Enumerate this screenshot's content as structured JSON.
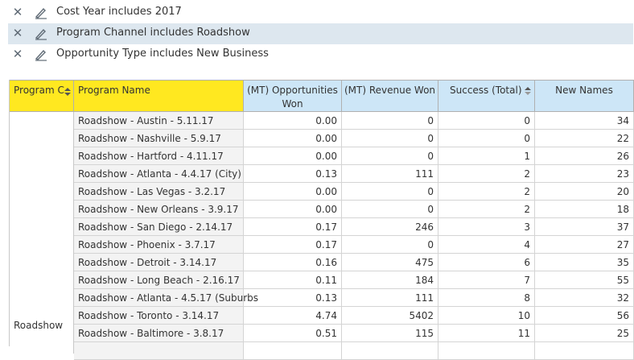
{
  "filters": [
    {
      "text": "Cost Year includes 2017",
      "selected": false
    },
    {
      "text": "Program Channel includes Roadshow",
      "selected": true
    },
    {
      "text": "Opportunity Type includes New Business",
      "selected": false
    }
  ],
  "table": {
    "headers": {
      "program_channel": "Program C",
      "program_name": "Program Name",
      "opps_won_line1": "(MT) Opportunities",
      "opps_won_line2": "Won",
      "revenue_won": "(MT) Revenue Won",
      "success_total": "Success (Total)",
      "new_names": "New Names"
    },
    "group_label": "Roadshow",
    "rows": [
      {
        "name": "Roadshow - Austin - 5.11.17",
        "opps": "0.00",
        "revenue": "0",
        "success": "0",
        "new_names": "34"
      },
      {
        "name": "Roadshow - Nashville - 5.9.17",
        "opps": "0.00",
        "revenue": "0",
        "success": "0",
        "new_names": "22"
      },
      {
        "name": "Roadshow - Hartford - 4.11.17",
        "opps": "0.00",
        "revenue": "0",
        "success": "1",
        "new_names": "26"
      },
      {
        "name": "Roadshow - Atlanta - 4.4.17 (City)",
        "opps": "0.13",
        "revenue": "111",
        "success": "2",
        "new_names": "23"
      },
      {
        "name": "Roadshow - Las Vegas - 3.2.17",
        "opps": "0.00",
        "revenue": "0",
        "success": "2",
        "new_names": "20"
      },
      {
        "name": "Roadshow - New Orleans - 3.9.17",
        "opps": "0.00",
        "revenue": "0",
        "success": "2",
        "new_names": "18"
      },
      {
        "name": "Roadshow - San Diego - 2.14.17",
        "opps": "0.17",
        "revenue": "246",
        "success": "3",
        "new_names": "37"
      },
      {
        "name": "Roadshow - Phoenix - 3.7.17",
        "opps": "0.17",
        "revenue": "0",
        "success": "4",
        "new_names": "27"
      },
      {
        "name": "Roadshow - Detroit - 3.14.17",
        "opps": "0.16",
        "revenue": "475",
        "success": "6",
        "new_names": "35"
      },
      {
        "name": "Roadshow - Long Beach - 2.16.17",
        "opps": "0.11",
        "revenue": "184",
        "success": "7",
        "new_names": "55"
      },
      {
        "name": "Roadshow - Atlanta - 4.5.17 (Suburbs",
        "opps": "0.13",
        "revenue": "111",
        "success": "8",
        "new_names": "32"
      },
      {
        "name": "Roadshow - Toronto - 3.14.17",
        "opps": "4.74",
        "revenue": "5402",
        "success": "10",
        "new_names": "56"
      },
      {
        "name": "Roadshow - Baltimore - 3.8.17",
        "opps": "0.51",
        "revenue": "115",
        "success": "11",
        "new_names": "25"
      },
      {
        "name": "",
        "opps": "",
        "revenue": "",
        "success": "",
        "new_names": ""
      }
    ]
  },
  "icons": {
    "remove": "close-icon",
    "edit": "pencil-icon",
    "sort": "sort-icon"
  },
  "colors": {
    "header_yellow": "#ffe820",
    "header_blue": "#cde6f7",
    "selected_filter_bg": "#dde7ef",
    "name_cell_bg": "#f3f3f3"
  }
}
